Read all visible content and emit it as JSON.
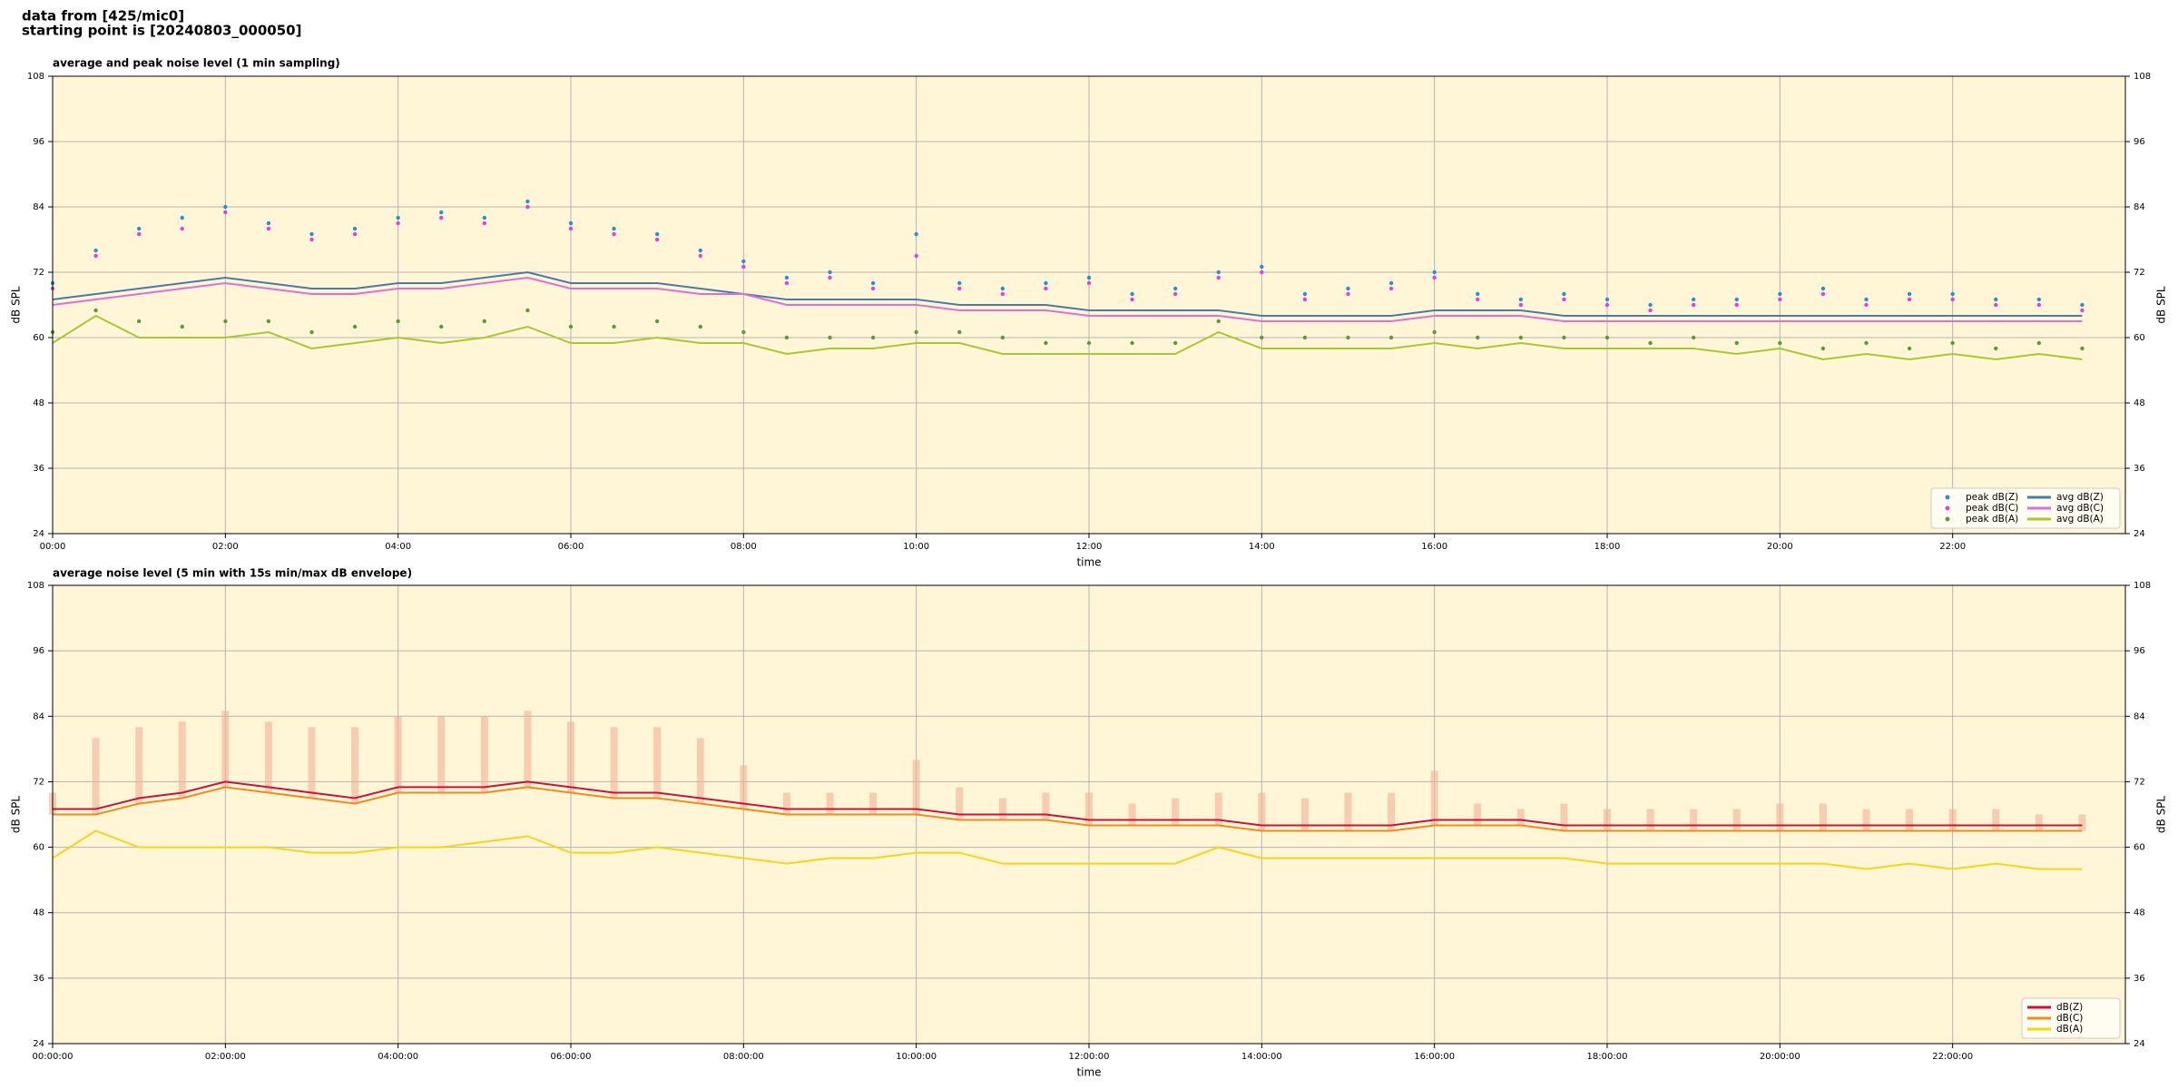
{
  "header": {
    "lines": [
      "data from [425/mic0]",
      "starting point is [20240803_000050]"
    ]
  },
  "chart_data": [
    {
      "type": "line",
      "title": "average and peak noise level (1 min sampling)",
      "xlabel": "time",
      "ylabel": "dB SPL",
      "xlim": [
        0,
        24
      ],
      "ylim": [
        24,
        108
      ],
      "yticks": [
        24,
        36,
        48,
        60,
        72,
        84,
        96,
        108
      ],
      "xticks": [
        {
          "value": 0,
          "label": "00:00"
        },
        {
          "value": 2,
          "label": "02:00"
        },
        {
          "value": 4,
          "label": "04:00"
        },
        {
          "value": 6,
          "label": "06:00"
        },
        {
          "value": 8,
          "label": "08:00"
        },
        {
          "value": 10,
          "label": "10:00"
        },
        {
          "value": 12,
          "label": "12:00"
        },
        {
          "value": 14,
          "label": "14:00"
        },
        {
          "value": 16,
          "label": "16:00"
        },
        {
          "value": 18,
          "label": "18:00"
        },
        {
          "value": 20,
          "label": "20:00"
        },
        {
          "value": 22,
          "label": "22:00"
        }
      ],
      "grid": true,
      "legend": "lower right",
      "legend_columns": 2,
      "x": [
        0,
        0.5,
        1,
        1.5,
        2,
        2.5,
        3,
        3.5,
        4,
        4.5,
        5,
        5.5,
        6,
        6.5,
        7,
        7.5,
        8,
        8.5,
        9,
        9.5,
        10,
        10.5,
        11,
        11.5,
        12,
        12.5,
        13,
        13.5,
        14,
        14.5,
        15,
        15.5,
        16,
        16.5,
        17,
        17.5,
        18,
        18.5,
        19,
        19.5,
        20,
        20.5,
        21,
        21.5,
        22,
        22.5,
        23,
        23.5
      ],
      "series": [
        {
          "name": "peak dB(Z)",
          "color": "#2a8fd0",
          "mode": "markers",
          "values": [
            70,
            76,
            80,
            82,
            84,
            81,
            79,
            80,
            82,
            83,
            82,
            85,
            81,
            80,
            79,
            76,
            74,
            71,
            72,
            70,
            79,
            70,
            69,
            70,
            71,
            68,
            69,
            72,
            73,
            68,
            69,
            70,
            72,
            68,
            67,
            68,
            67,
            66,
            67,
            67,
            68,
            69,
            67,
            68,
            68,
            67,
            67,
            66
          ]
        },
        {
          "name": "peak dB(C)",
          "color": "#e040e0",
          "mode": "markers",
          "values": [
            69,
            75,
            79,
            80,
            83,
            80,
            78,
            79,
            81,
            82,
            81,
            84,
            80,
            79,
            78,
            75,
            73,
            70,
            71,
            69,
            75,
            69,
            68,
            69,
            70,
            67,
            68,
            71,
            72,
            67,
            68,
            69,
            71,
            67,
            66,
            67,
            66,
            65,
            66,
            66,
            67,
            68,
            66,
            67,
            67,
            66,
            66,
            65
          ]
        },
        {
          "name": "peak dB(A)",
          "color": "#5a9a3a",
          "mode": "markers",
          "values": [
            61,
            65,
            63,
            62,
            63,
            63,
            61,
            62,
            63,
            62,
            63,
            65,
            62,
            62,
            63,
            62,
            61,
            60,
            60,
            60,
            61,
            61,
            60,
            59,
            59,
            59,
            59,
            63,
            60,
            60,
            60,
            60,
            61,
            60,
            60,
            60,
            60,
            59,
            60,
            59,
            59,
            58,
            59,
            58,
            59,
            58,
            59,
            58
          ]
        },
        {
          "name": "avg dB(Z)",
          "color": "#4a7aa8",
          "mode": "line",
          "values": [
            67,
            68,
            69,
            70,
            71,
            70,
            69,
            69,
            70,
            70,
            71,
            72,
            70,
            70,
            70,
            69,
            68,
            67,
            67,
            67,
            67,
            66,
            66,
            66,
            65,
            65,
            65,
            65,
            64,
            64,
            64,
            64,
            65,
            65,
            65,
            64,
            64,
            64,
            64,
            64,
            64,
            64,
            64,
            64,
            64,
            64,
            64,
            64
          ]
        },
        {
          "name": "avg dB(C)",
          "color": "#e070d0",
          "mode": "line",
          "values": [
            66,
            67,
            68,
            69,
            70,
            69,
            68,
            68,
            69,
            69,
            70,
            71,
            69,
            69,
            69,
            68,
            68,
            66,
            66,
            66,
            66,
            65,
            65,
            65,
            64,
            64,
            64,
            64,
            63,
            63,
            63,
            63,
            64,
            64,
            64,
            63,
            63,
            63,
            63,
            63,
            63,
            63,
            63,
            63,
            63,
            63,
            63,
            63
          ]
        },
        {
          "name": "avg dB(A)",
          "color": "#a8c832",
          "mode": "line",
          "values": [
            59,
            64,
            60,
            60,
            60,
            61,
            58,
            59,
            60,
            59,
            60,
            62,
            59,
            59,
            60,
            59,
            59,
            57,
            58,
            58,
            59,
            59,
            57,
            57,
            57,
            57,
            57,
            61,
            58,
            58,
            58,
            58,
            59,
            58,
            59,
            58,
            58,
            58,
            58,
            57,
            58,
            56,
            57,
            56,
            57,
            56,
            57,
            56
          ]
        }
      ]
    },
    {
      "type": "line",
      "title": "average noise level (5 min with 15s min/max dB envelope)",
      "xlabel": "time",
      "ylabel": "dB SPL",
      "xlim": [
        0,
        24
      ],
      "ylim": [
        24,
        108
      ],
      "yticks": [
        24,
        36,
        48,
        60,
        72,
        84,
        96,
        108
      ],
      "xticks": [
        {
          "value": 0,
          "label": "00:00:00"
        },
        {
          "value": 2,
          "label": "02:00:00"
        },
        {
          "value": 4,
          "label": "04:00:00"
        },
        {
          "value": 6,
          "label": "06:00:00"
        },
        {
          "value": 8,
          "label": "08:00:00"
        },
        {
          "value": 10,
          "label": "10:00:00"
        },
        {
          "value": 12,
          "label": "12:00:00"
        },
        {
          "value": 14,
          "label": "14:00:00"
        },
        {
          "value": 16,
          "label": "16:00:00"
        },
        {
          "value": 18,
          "label": "18:00:00"
        },
        {
          "value": 20,
          "label": "20:00:00"
        },
        {
          "value": 22,
          "label": "22:00:00"
        }
      ],
      "grid": true,
      "legend": "lower right",
      "legend_columns": 1,
      "x": [
        0,
        0.5,
        1,
        1.5,
        2,
        2.5,
        3,
        3.5,
        4,
        4.5,
        5,
        5.5,
        6,
        6.5,
        7,
        7.5,
        8,
        8.5,
        9,
        9.5,
        10,
        10.5,
        11,
        11.5,
        12,
        12.5,
        13,
        13.5,
        14,
        14.5,
        15,
        15.5,
        16,
        16.5,
        17,
        17.5,
        18,
        18.5,
        19,
        19.5,
        20,
        20.5,
        21,
        21.5,
        22,
        22.5,
        23,
        23.5
      ],
      "envelope": {
        "color": "#f4b098",
        "max": [
          70,
          80,
          82,
          83,
          85,
          83,
          82,
          82,
          84,
          84,
          84,
          85,
          83,
          82,
          82,
          80,
          75,
          70,
          70,
          70,
          76,
          71,
          69,
          70,
          70,
          68,
          69,
          70,
          70,
          69,
          70,
          70,
          74,
          68,
          67,
          68,
          67,
          67,
          67,
          67,
          68,
          68,
          67,
          67,
          67,
          67,
          66,
          66
        ]
      },
      "series": [
        {
          "name": "dB(Z)",
          "color": "#c8143c",
          "mode": "line",
          "values": [
            67,
            67,
            69,
            70,
            72,
            71,
            70,
            69,
            71,
            71,
            71,
            72,
            71,
            70,
            70,
            69,
            68,
            67,
            67,
            67,
            67,
            66,
            66,
            66,
            65,
            65,
            65,
            65,
            64,
            64,
            64,
            64,
            65,
            65,
            65,
            64,
            64,
            64,
            64,
            64,
            64,
            64,
            64,
            64,
            64,
            64,
            64,
            64
          ]
        },
        {
          "name": "dB(C)",
          "color": "#f08c1c",
          "mode": "line",
          "values": [
            66,
            66,
            68,
            69,
            71,
            70,
            69,
            68,
            70,
            70,
            70,
            71,
            70,
            69,
            69,
            68,
            67,
            66,
            66,
            66,
            66,
            65,
            65,
            65,
            64,
            64,
            64,
            64,
            63,
            63,
            63,
            63,
            64,
            64,
            64,
            63,
            63,
            63,
            63,
            63,
            63,
            63,
            63,
            63,
            63,
            63,
            63,
            63
          ]
        },
        {
          "name": "dB(A)",
          "color": "#f8d41c",
          "mode": "line",
          "values": [
            58,
            63,
            60,
            60,
            60,
            60,
            59,
            59,
            60,
            60,
            61,
            62,
            59,
            59,
            60,
            59,
            58,
            57,
            58,
            58,
            59,
            59,
            57,
            57,
            57,
            57,
            57,
            60,
            58,
            58,
            58,
            58,
            58,
            58,
            58,
            58,
            57,
            57,
            57,
            57,
            57,
            57,
            56,
            57,
            56,
            57,
            56,
            56
          ]
        }
      ]
    }
  ]
}
